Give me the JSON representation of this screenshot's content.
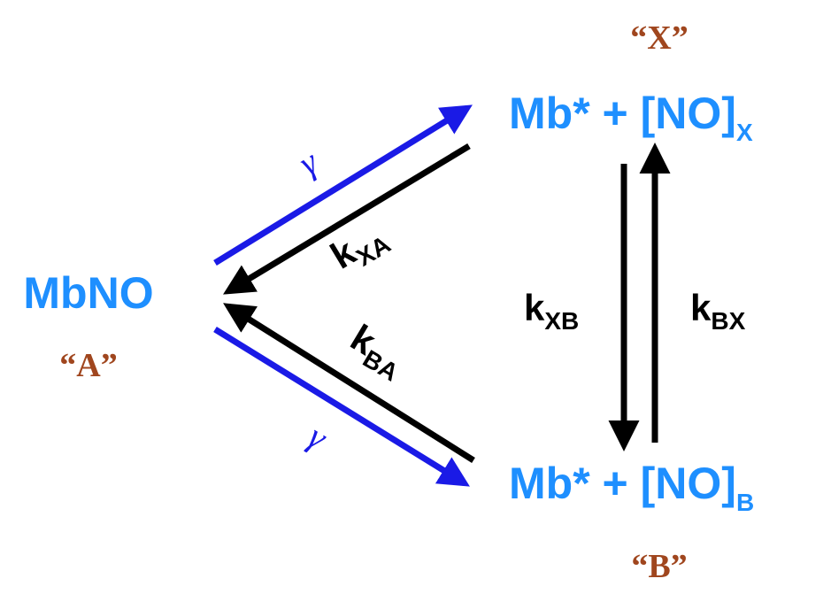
{
  "nodes": [
    {
      "label": "MbNO",
      "tag": "“A”"
    },
    {
      "label": "Mb* + [NO]",
      "subscript": "X",
      "tag": "“X”"
    },
    {
      "label": "Mb* + [NO]",
      "subscript": "B",
      "tag": "“B”"
    }
  ],
  "edges": [
    {
      "label": "γ"
    },
    {
      "label": "k",
      "subscript": "XA"
    },
    {
      "label": "k",
      "subscript": "BA"
    },
    {
      "label": "γ"
    },
    {
      "label": "k",
      "subscript": "XB"
    },
    {
      "label": "k",
      "subscript": "BX"
    }
  ]
}
